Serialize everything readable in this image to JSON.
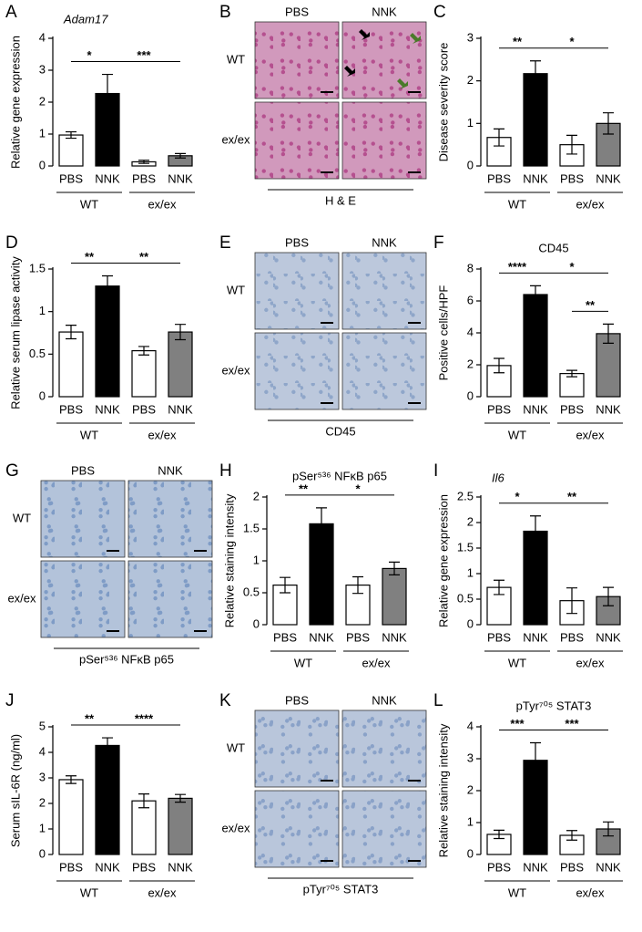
{
  "chart_data": [
    {
      "type": "bar",
      "letter": "A",
      "title": "Adam17",
      "title_italic": true,
      "ylabel": "Relative gene expression",
      "categories": [
        "PBS",
        "NNK",
        "PBS",
        "NNK"
      ],
      "groups": [
        "WT",
        "ex/ex"
      ],
      "values": [
        0.97,
        2.27,
        0.13,
        0.32
      ],
      "errors": [
        0.1,
        0.6,
        0.05,
        0.07
      ],
      "colors": [
        "#ffffff",
        "#000000",
        "#ffffff",
        "#808080"
      ],
      "ylim": [
        0,
        4
      ],
      "yticks": [
        0,
        1,
        2,
        3,
        4
      ],
      "comparisons": [
        {
          "label": "*",
          "pair": [
            0,
            1
          ]
        },
        {
          "label": "***",
          "pair": [
            1,
            3
          ]
        }
      ]
    },
    {
      "type": "bar",
      "letter": "C",
      "ylabel": "Disease severity score",
      "categories": [
        "PBS",
        "NNK",
        "PBS",
        "NNK"
      ],
      "groups": [
        "WT",
        "ex/ex"
      ],
      "values": [
        0.67,
        2.17,
        0.5,
        1.0
      ],
      "errors": [
        0.2,
        0.3,
        0.22,
        0.25
      ],
      "colors": [
        "#ffffff",
        "#000000",
        "#ffffff",
        "#808080"
      ],
      "ylim": [
        0,
        3
      ],
      "yticks": [
        0,
        1,
        2,
        3
      ],
      "comparisons": [
        {
          "label": "**",
          "pair": [
            0,
            1
          ]
        },
        {
          "label": "*",
          "pair": [
            1,
            3
          ]
        }
      ]
    },
    {
      "type": "bar",
      "letter": "D",
      "ylabel": "Relative serum lipase activity",
      "categories": [
        "PBS",
        "NNK",
        "PBS",
        "NNK"
      ],
      "groups": [
        "WT",
        "ex/ex"
      ],
      "values": [
        0.76,
        1.3,
        0.54,
        0.76
      ],
      "errors": [
        0.08,
        0.12,
        0.05,
        0.09
      ],
      "colors": [
        "#ffffff",
        "#000000",
        "#ffffff",
        "#808080"
      ],
      "ylim": [
        0,
        1.5
      ],
      "yticks": [
        0,
        0.5,
        1,
        1.5
      ],
      "comparisons": [
        {
          "label": "**",
          "pair": [
            0,
            1
          ]
        },
        {
          "label": "**",
          "pair": [
            1,
            3
          ]
        }
      ]
    },
    {
      "type": "bar",
      "letter": "F",
      "title": "CD45",
      "ylabel": "Positive cells/HPF",
      "categories": [
        "PBS",
        "NNK",
        "PBS",
        "NNK"
      ],
      "groups": [
        "WT",
        "ex/ex"
      ],
      "values": [
        1.95,
        6.4,
        1.45,
        3.95
      ],
      "errors": [
        0.45,
        0.55,
        0.2,
        0.6
      ],
      "colors": [
        "#ffffff",
        "#000000",
        "#ffffff",
        "#808080"
      ],
      "ylim": [
        0,
        8
      ],
      "yticks": [
        0,
        2,
        4,
        6,
        8
      ],
      "comparisons": [
        {
          "label": "****",
          "pair": [
            0,
            1
          ]
        },
        {
          "label": "*",
          "pair": [
            1,
            3
          ]
        },
        {
          "label": "**",
          "pair": [
            2,
            3
          ]
        }
      ]
    },
    {
      "type": "bar",
      "letter": "H",
      "title": "pSer⁵³⁶ NFκB p65",
      "ylabel": "Relative staining intensity",
      "categories": [
        "PBS",
        "NNK",
        "PBS",
        "NNK"
      ],
      "groups": [
        "WT",
        "ex/ex"
      ],
      "values": [
        0.62,
        1.58,
        0.62,
        0.88
      ],
      "errors": [
        0.12,
        0.25,
        0.13,
        0.1
      ],
      "colors": [
        "#ffffff",
        "#000000",
        "#ffffff",
        "#808080"
      ],
      "ylim": [
        0,
        2
      ],
      "yticks": [
        0,
        0.5,
        1,
        1.5,
        2
      ],
      "comparisons": [
        {
          "label": "**",
          "pair": [
            0,
            1
          ]
        },
        {
          "label": "*",
          "pair": [
            1,
            3
          ]
        }
      ]
    },
    {
      "type": "bar",
      "letter": "I",
      "title": "Il6",
      "title_italic": true,
      "ylabel": "Relative gene expression",
      "categories": [
        "PBS",
        "NNK",
        "PBS",
        "NNK"
      ],
      "groups": [
        "WT",
        "ex/ex"
      ],
      "values": [
        0.73,
        1.83,
        0.47,
        0.55
      ],
      "errors": [
        0.14,
        0.3,
        0.25,
        0.18
      ],
      "colors": [
        "#ffffff",
        "#000000",
        "#ffffff",
        "#808080"
      ],
      "ylim": [
        0,
        2.5
      ],
      "yticks": [
        0,
        0.5,
        1,
        1.5,
        2,
        2.5
      ],
      "comparisons": [
        {
          "label": "*",
          "pair": [
            0,
            1
          ]
        },
        {
          "label": "**",
          "pair": [
            1,
            3
          ]
        }
      ]
    },
    {
      "type": "bar",
      "letter": "J",
      "ylabel": "Serum sIL-6R (ng/ml)",
      "categories": [
        "PBS",
        "NNK",
        "PBS",
        "NNK"
      ],
      "groups": [
        "WT",
        "ex/ex"
      ],
      "values": [
        2.93,
        4.27,
        2.1,
        2.2
      ],
      "errors": [
        0.15,
        0.3,
        0.27,
        0.15
      ],
      "colors": [
        "#ffffff",
        "#000000",
        "#ffffff",
        "#808080"
      ],
      "ylim": [
        0,
        5
      ],
      "yticks": [
        0,
        1,
        2,
        3,
        4,
        5
      ],
      "comparisons": [
        {
          "label": "**",
          "pair": [
            0,
            1
          ]
        },
        {
          "label": "****",
          "pair": [
            1,
            3
          ]
        }
      ]
    },
    {
      "type": "bar",
      "letter": "L",
      "title": "pTyr⁷⁰⁵ STAT3",
      "ylabel": "Relative staining intensity",
      "categories": [
        "PBS",
        "NNK",
        "PBS",
        "NNK"
      ],
      "groups": [
        "WT",
        "ex/ex"
      ],
      "values": [
        0.63,
        2.95,
        0.6,
        0.8
      ],
      "errors": [
        0.13,
        0.55,
        0.15,
        0.22
      ],
      "colors": [
        "#ffffff",
        "#000000",
        "#ffffff",
        "#808080"
      ],
      "ylim": [
        0,
        4
      ],
      "yticks": [
        0,
        1,
        2,
        3,
        4
      ],
      "comparisons": [
        {
          "label": "***",
          "pair": [
            0,
            1
          ]
        },
        {
          "label": "***",
          "pair": [
            1,
            3
          ]
        }
      ]
    }
  ],
  "image_panels": [
    {
      "letter": "B",
      "columns": [
        "PBS",
        "NNK"
      ],
      "rows": [
        "WT",
        "ex/ex"
      ],
      "caption": "H & E",
      "color": "#b5508f"
    },
    {
      "letter": "E",
      "columns": [
        "PBS",
        "NNK"
      ],
      "rows": [
        "WT",
        "ex/ex"
      ],
      "caption": "CD45",
      "color": "#8fa6c9"
    },
    {
      "letter": "G",
      "columns": [
        "PBS",
        "NNK"
      ],
      "rows": [
        "WT",
        "ex/ex"
      ],
      "caption": "pSer⁵³⁶ NFκB p65",
      "color": "#7f9cc6"
    },
    {
      "letter": "K",
      "columns": [
        "PBS",
        "NNK"
      ],
      "rows": [
        "WT",
        "ex/ex"
      ],
      "caption": "pTyr⁷⁰⁵ STAT3",
      "color": "#8aa2c8"
    }
  ]
}
